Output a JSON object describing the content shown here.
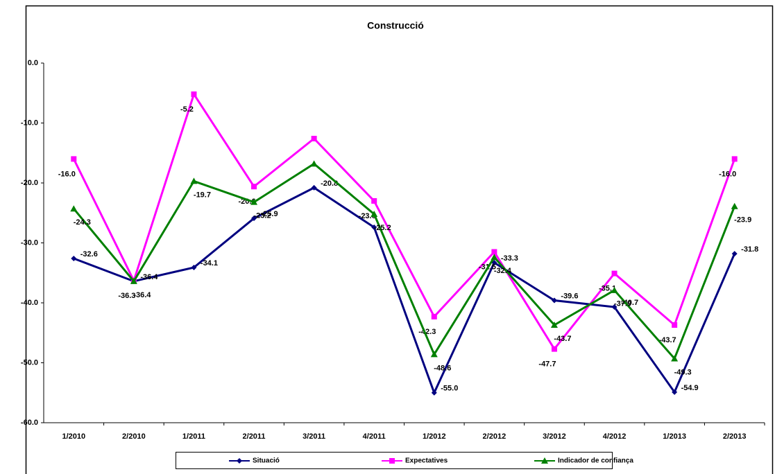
{
  "chart_data": {
    "type": "line",
    "title": "Construcció",
    "categories": [
      "1/2010",
      "2/2010",
      "1/2011",
      "2/2011",
      "3/2011",
      "4/2011",
      "1/2012",
      "2/2012",
      "3/2012",
      "4/2012",
      "1/2013",
      "2/2013"
    ],
    "ylim": [
      -60,
      0
    ],
    "yticks": [
      {
        "value": -60,
        "label": "-60.0"
      },
      {
        "value": -50,
        "label": "-50.0"
      },
      {
        "value": -40,
        "label": "-40.0"
      },
      {
        "value": -30,
        "label": "-30.0"
      },
      {
        "value": -20,
        "label": "-20.0"
      },
      {
        "value": -10,
        "label": "-10.0"
      },
      {
        "value": 0,
        "label": "0.0"
      }
    ],
    "series": [
      {
        "name": "Situació",
        "color": "#000080",
        "marker": "diamond",
        "values": [
          -32.6,
          -36.4,
          -34.1,
          -25.9,
          -20.8,
          -27.4,
          -55,
          -33.3,
          -39.6,
          -40.7,
          -54.9,
          -31.8
        ],
        "value_labels": [
          "-32.6",
          "-36.4",
          "-34.1",
          "-25.9",
          "-20.8",
          null,
          "-55.0",
          "-33.3",
          "-39.6",
          "-40.7",
          "-54.9",
          "-31.8"
        ]
      },
      {
        "name": "Expectatives",
        "color": "#ff00ff",
        "marker": "square",
        "values": [
          -16,
          -36.3,
          -5.2,
          -20.6,
          -12.6,
          -23,
          -42.3,
          -31.5,
          -47.7,
          -35.1,
          -43.7,
          -16
        ],
        "value_labels": [
          "-16.0",
          "-36.3",
          "-5.2",
          "-20.6",
          null,
          "-23.0",
          "-42.3",
          "-31.5",
          "-47.7",
          "-35.1",
          "-43.7",
          "-16.0"
        ]
      },
      {
        "name": "Indicador de confiança",
        "color": "#008000",
        "marker": "triangle",
        "values": [
          -24.3,
          -36.4,
          -19.7,
          -23.2,
          -16.8,
          -25.2,
          -48.6,
          -32.4,
          -43.7,
          -37.9,
          -49.3,
          -23.9
        ],
        "value_labels": [
          "-24.3",
          "-36.4",
          "-19.7",
          "-23.2",
          null,
          "-25.2",
          "-48.6",
          "-32.4",
          "-43.7",
          "-37.9",
          "-49.3",
          "-23.9"
        ]
      }
    ]
  }
}
